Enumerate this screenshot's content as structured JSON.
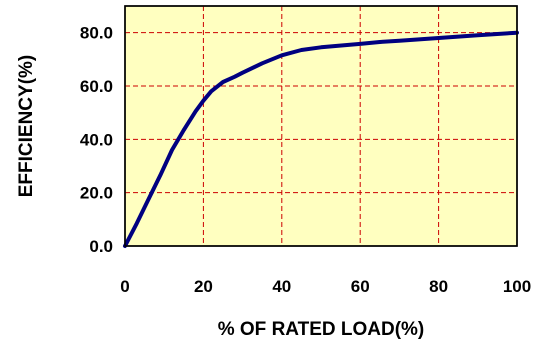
{
  "chart_data": {
    "type": "line",
    "title": "",
    "xlabel": "% OF RATED LOAD(%)",
    "ylabel": "EFFICIENCY(%)",
    "xlim": [
      0,
      100
    ],
    "ylim": [
      0,
      90
    ],
    "x_ticks": [
      "0",
      "20",
      "40",
      "60",
      "80",
      "100"
    ],
    "y_ticks": [
      "0.0",
      "20.0",
      "40.0",
      "60.0",
      "80.0"
    ],
    "grid": true,
    "legend": "none",
    "series": [
      {
        "x": [
          0,
          3,
          6,
          9,
          12,
          15,
          18,
          20,
          22,
          25,
          28,
          30,
          35,
          40,
          45,
          50,
          60,
          65,
          70,
          80,
          90,
          100
        ],
        "y": [
          0,
          8.5,
          17.5,
          26.5,
          36,
          43.5,
          50.5,
          54.5,
          58,
          61.5,
          63.5,
          65,
          68.5,
          71.5,
          73.5,
          74.5,
          75.8,
          76.5,
          77,
          78,
          79,
          80
        ],
        "color": "#000080"
      }
    ],
    "colors": {
      "plot_background": "#ffffc0",
      "grid": "#cc0000",
      "line": "#000080"
    }
  }
}
